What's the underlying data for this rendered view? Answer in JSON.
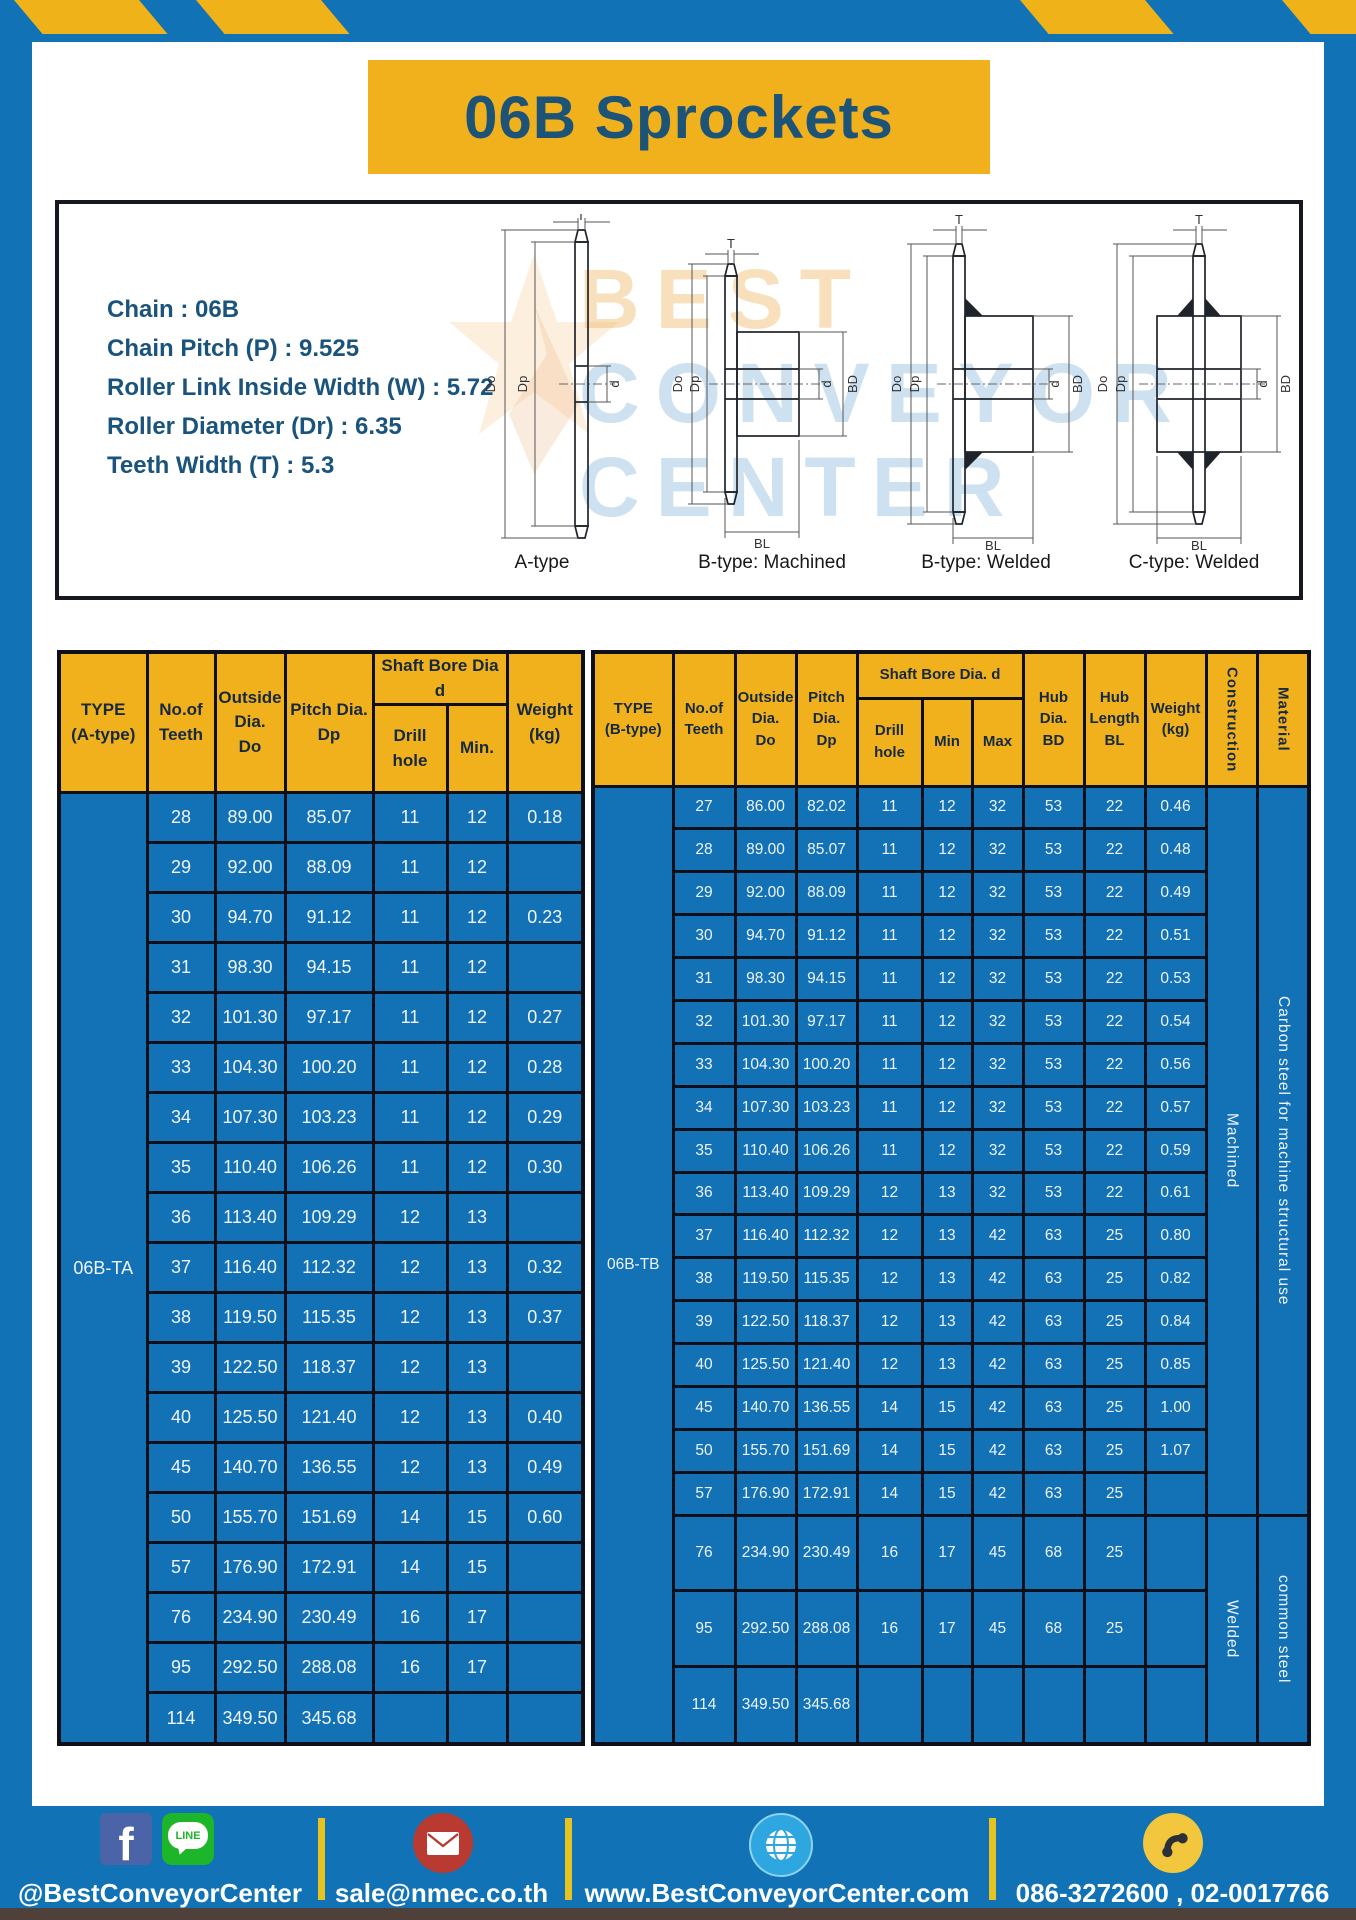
{
  "header": {
    "title": "06B Sprockets"
  },
  "specs": {
    "lines": [
      "Chain : 06B",
      "Chain Pitch (P) : 9.525",
      "Roller Link Inside Width (W) : 5.72",
      "Roller Diameter (Dr) : 6.35",
      "Teeth Width (T) : 5.3"
    ]
  },
  "watermark": {
    "line1": "BEST",
    "line2": "CONVEYOR",
    "line3": "CENTER"
  },
  "diagrams": {
    "labels": [
      "A-type",
      "B-type: Machined",
      "B-type: Welded",
      "C-type: Welded"
    ],
    "dims": {
      "t": "T",
      "do": "Do",
      "dp": "Dp",
      "d": "d",
      "bd": "BD",
      "bl": "BL"
    }
  },
  "table_a": {
    "type_label": "06B-TA",
    "headers": {
      "type": "TYPE\n(A-type)",
      "teeth": "No.of\nTeeth",
      "outside": "Outside\nDia.\nDo",
      "pitch": "Pitch Dia.\nDp",
      "shaft_bore": "Shaft Bore Dia d",
      "drill": "Drill hole",
      "min": "Min.",
      "weight": "Weight\n(kg)"
    },
    "rows": [
      [
        "28",
        "89.00",
        "85.07",
        "11",
        "12",
        "0.18"
      ],
      [
        "29",
        "92.00",
        "88.09",
        "11",
        "12",
        ""
      ],
      [
        "30",
        "94.70",
        "91.12",
        "11",
        "12",
        "0.23"
      ],
      [
        "31",
        "98.30",
        "94.15",
        "11",
        "12",
        ""
      ],
      [
        "32",
        "101.30",
        "97.17",
        "11",
        "12",
        "0.27"
      ],
      [
        "33",
        "104.30",
        "100.20",
        "11",
        "12",
        "0.28"
      ],
      [
        "34",
        "107.30",
        "103.23",
        "11",
        "12",
        "0.29"
      ],
      [
        "35",
        "110.40",
        "106.26",
        "11",
        "12",
        "0.30"
      ],
      [
        "36",
        "113.40",
        "109.29",
        "12",
        "13",
        ""
      ],
      [
        "37",
        "116.40",
        "112.32",
        "12",
        "13",
        "0.32"
      ],
      [
        "38",
        "119.50",
        "115.35",
        "12",
        "13",
        "0.37"
      ],
      [
        "39",
        "122.50",
        "118.37",
        "12",
        "13",
        ""
      ],
      [
        "40",
        "125.50",
        "121.40",
        "12",
        "13",
        "0.40"
      ],
      [
        "45",
        "140.70",
        "136.55",
        "12",
        "13",
        "0.49"
      ],
      [
        "50",
        "155.70",
        "151.69",
        "14",
        "15",
        "0.60"
      ],
      [
        "57",
        "176.90",
        "172.91",
        "14",
        "15",
        ""
      ],
      [
        "76",
        "234.90",
        "230.49",
        "16",
        "17",
        ""
      ],
      [
        "95",
        "292.50",
        "288.08",
        "16",
        "17",
        ""
      ],
      [
        "114",
        "349.50",
        "345.68",
        "",
        "",
        ""
      ]
    ]
  },
  "table_b": {
    "type_label": "06B-TB",
    "headers": {
      "type": "TYPE\n(B-type)",
      "teeth": "No.of\nTeeth",
      "outside": "Outside\nDia.\nDo",
      "pitch": "Pitch\nDia.\nDp",
      "shaft_bore": "Shaft Bore Dia. d",
      "drill": "Drill hole",
      "min": "Min",
      "max": "Max",
      "hub_dia": "Hub\nDia.\nBD",
      "hub_len": "Hub\nLength\nBL",
      "weight": "Weight\n(kg)",
      "construction": "Construction",
      "material": "Material"
    },
    "rows": [
      [
        "27",
        "86.00",
        "82.02",
        "11",
        "12",
        "32",
        "53",
        "22",
        "0.46"
      ],
      [
        "28",
        "89.00",
        "85.07",
        "11",
        "12",
        "32",
        "53",
        "22",
        "0.48"
      ],
      [
        "29",
        "92.00",
        "88.09",
        "11",
        "12",
        "32",
        "53",
        "22",
        "0.49"
      ],
      [
        "30",
        "94.70",
        "91.12",
        "11",
        "12",
        "32",
        "53",
        "22",
        "0.51"
      ],
      [
        "31",
        "98.30",
        "94.15",
        "11",
        "12",
        "32",
        "53",
        "22",
        "0.53"
      ],
      [
        "32",
        "101.30",
        "97.17",
        "11",
        "12",
        "32",
        "53",
        "22",
        "0.54"
      ],
      [
        "33",
        "104.30",
        "100.20",
        "11",
        "12",
        "32",
        "53",
        "22",
        "0.56"
      ],
      [
        "34",
        "107.30",
        "103.23",
        "11",
        "12",
        "32",
        "53",
        "22",
        "0.57"
      ],
      [
        "35",
        "110.40",
        "106.26",
        "11",
        "12",
        "32",
        "53",
        "22",
        "0.59"
      ],
      [
        "36",
        "113.40",
        "109.29",
        "12",
        "13",
        "32",
        "53",
        "22",
        "0.61"
      ],
      [
        "37",
        "116.40",
        "112.32",
        "12",
        "13",
        "42",
        "63",
        "25",
        "0.80"
      ],
      [
        "38",
        "119.50",
        "115.35",
        "12",
        "13",
        "42",
        "63",
        "25",
        "0.82"
      ],
      [
        "39",
        "122.50",
        "118.37",
        "12",
        "13",
        "42",
        "63",
        "25",
        "0.84"
      ],
      [
        "40",
        "125.50",
        "121.40",
        "12",
        "13",
        "42",
        "63",
        "25",
        "0.85"
      ],
      [
        "45",
        "140.70",
        "136.55",
        "14",
        "15",
        "42",
        "63",
        "25",
        "1.00"
      ],
      [
        "50",
        "155.70",
        "151.69",
        "14",
        "15",
        "42",
        "63",
        "25",
        "1.07"
      ],
      [
        "57",
        "176.90",
        "172.91",
        "14",
        "15",
        "42",
        "63",
        "25",
        ""
      ],
      [
        "76",
        "234.90",
        "230.49",
        "16",
        "17",
        "45",
        "68",
        "25",
        ""
      ],
      [
        "95",
        "292.50",
        "288.08",
        "16",
        "17",
        "45",
        "68",
        "25",
        ""
      ],
      [
        "114",
        "349.50",
        "345.68",
        "",
        "",
        "",
        "",
        "",
        ""
      ]
    ],
    "construction_groups": [
      {
        "label": "Machined",
        "span": 17
      },
      {
        "label": "Welded",
        "span": 3
      }
    ],
    "material_groups": [
      {
        "label": "Carbon steel for machine structural use",
        "span": 17
      },
      {
        "label": "common steel",
        "span": 3
      }
    ]
  },
  "footer": {
    "social": {
      "facebook_letter": "f",
      "line_label": "LINE",
      "text": "@BestConveyorCenter"
    },
    "email": {
      "text": "sale@nmec.co.th"
    },
    "website": {
      "text": "www.BestConveyorCenter.com"
    },
    "phone": {
      "text": "086-3272600 , 02-0017766"
    }
  },
  "colors": {
    "frame_blue": "#1173b5",
    "cell_blue": "#1371b6",
    "accent_yellow": "#f0b11d",
    "title_text": "#1d5377",
    "spec_text": "#1a547d",
    "border_dark": "#0d1018"
  }
}
